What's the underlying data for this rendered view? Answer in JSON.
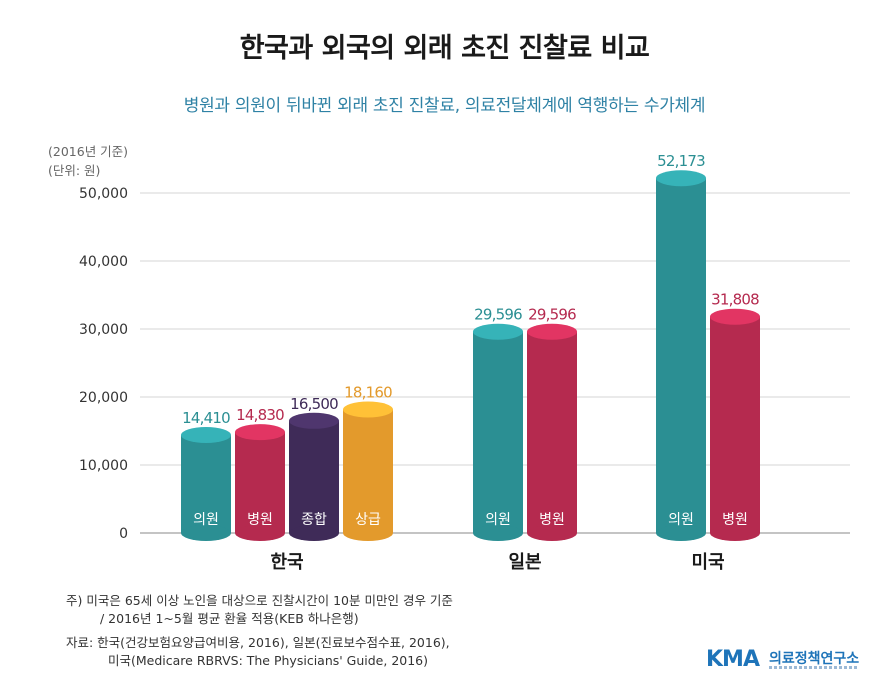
{
  "title": "한국과 외국의 외래 초진 진찰료 비교",
  "subtitle": "병원과 의원이 뒤바뀐 외래 초진 진찰료, 의료전달체계에 역행하는 수가체계",
  "base_year_note": "(2016년 기준)",
  "unit_note": "(단위: 원)",
  "footnotes": [
    "주) 미국은 65세 이상 노인을 대상으로 진찰시간이 10분 미만인 경우 기준",
    "/ 2016년 1~5월 평균 환율 적용(KEB 하나은행)",
    "자료: 한국(건강보험요양급여비용, 2016), 일본(진료보수점수표, 2016),",
    "미국(Medicare RBRVS: The Physicians' Guide, 2016)"
  ],
  "logo": {
    "mark": "KMA",
    "name": "의료정책연구소"
  },
  "colors": {
    "teal": "#2b8f93",
    "crimson": "#b52a4f",
    "purple": "#3f2b58",
    "orange": "#e39a2c",
    "grid": "#d5d5d5",
    "axis_text": "#333333"
  },
  "chart_data": {
    "type": "bar",
    "ylim": [
      0,
      55000
    ],
    "yticks": [
      0,
      10000,
      20000,
      30000,
      40000,
      50000
    ],
    "ytick_labels": [
      "0",
      "10,000",
      "20,000",
      "30,000",
      "40,000",
      "50,000"
    ],
    "grid": true,
    "groups": [
      {
        "country": "한국",
        "bars": [
          {
            "label": "의원",
            "value": 14410,
            "value_label": "14,410",
            "color": "teal"
          },
          {
            "label": "병원",
            "value": 14830,
            "value_label": "14,830",
            "color": "crimson"
          },
          {
            "label": "종합",
            "value": 16500,
            "value_label": "16,500",
            "color": "purple"
          },
          {
            "label": "상급",
            "value": 18160,
            "value_label": "18,160",
            "color": "orange"
          }
        ]
      },
      {
        "country": "일본",
        "bars": [
          {
            "label": "의원",
            "value": 29596,
            "value_label": "29,596",
            "color": "teal"
          },
          {
            "label": "병원",
            "value": 29596,
            "value_label": "29,596",
            "color": "crimson"
          }
        ]
      },
      {
        "country": "미국",
        "bars": [
          {
            "label": "의원",
            "value": 52173,
            "value_label": "52,173",
            "color": "teal"
          },
          {
            "label": "병원",
            "value": 31808,
            "value_label": "31,808",
            "color": "crimson"
          }
        ]
      }
    ]
  }
}
